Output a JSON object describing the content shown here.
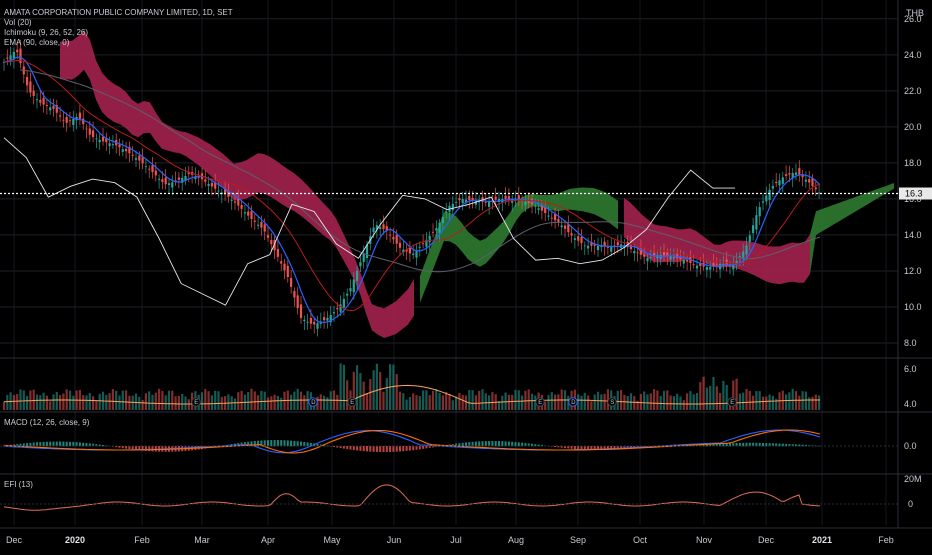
{
  "chart_data": {
    "type": "candlestick",
    "title": "AMATA CORPORATION PUBLIC COMPANY LIMITED, 1D, SET",
    "currency": "THB",
    "last_price": "16.3",
    "indicators": [
      {
        "name": "volume",
        "label": "Vol (20)"
      },
      {
        "name": "ichimoku",
        "label": "Ichimoku (9, 26, 52, 26)"
      },
      {
        "name": "ema",
        "label": "EMA (90, close, 0)"
      },
      {
        "name": "macd",
        "label": "MACD (12, 26, close, 9)"
      },
      {
        "name": "efi",
        "label": "EFI (13)"
      }
    ],
    "price_axis": {
      "ticks": [
        "26.0",
        "24.0",
        "22.0",
        "20.0",
        "18.0",
        "16.0",
        "14.0",
        "12.0",
        "10.0",
        "8.0"
      ],
      "range": [
        7.5,
        26.6
      ]
    },
    "volume_axis": {
      "ticks": [
        "6.0",
        "4.0"
      ]
    },
    "macd_axis": {
      "ticks": [
        "0.0"
      ]
    },
    "efi_axis": {
      "ticks": [
        "20M",
        "0"
      ]
    },
    "x_labels": [
      "Dec",
      "2020",
      "Feb",
      "Mar",
      "Apr",
      "May",
      "Jun",
      "Jul",
      "Aug",
      "Sep",
      "Oct",
      "Nov",
      "Dec",
      "2021",
      "Feb"
    ],
    "price_series": [
      23.6,
      24.3,
      22.0,
      21.3,
      21.0,
      20.2,
      20.6,
      19.5,
      19.2,
      19.0,
      18.6,
      18.1,
      17.5,
      16.8,
      17.0,
      17.4,
      17.1,
      16.6,
      16.2,
      15.6,
      14.9,
      14.3,
      13.0,
      11.6,
      9.4,
      9.0,
      9.3,
      9.9,
      11.0,
      12.8,
      14.6,
      14.2,
      13.3,
      12.9,
      13.6,
      14.4,
      15.6,
      16.0,
      15.9,
      15.8,
      16.0,
      16.0,
      15.9,
      15.6,
      15.1,
      14.6,
      13.9,
      13.4,
      13.4,
      13.3,
      13.5,
      13.1,
      12.7,
      12.9,
      12.8,
      12.6,
      12.3,
      12.2,
      12.4,
      12.3,
      13.3,
      15.4,
      16.6,
      17.2,
      17.5,
      17.0,
      16.3
    ],
    "white_line": [
      19.4,
      18.3,
      16.1,
      16.7,
      17.1,
      16.9,
      16.1,
      13.8,
      11.3,
      10.7,
      10.1,
      12.4,
      12.9,
      15.7,
      15.3,
      13.5,
      12.7,
      14.6,
      16.2,
      16.0,
      15.4,
      15.7,
      16.1,
      13.8,
      12.6,
      12.7,
      12.4,
      12.6,
      13.3,
      14.3,
      16.1,
      17.6,
      16.6,
      16.6
    ]
  }
}
